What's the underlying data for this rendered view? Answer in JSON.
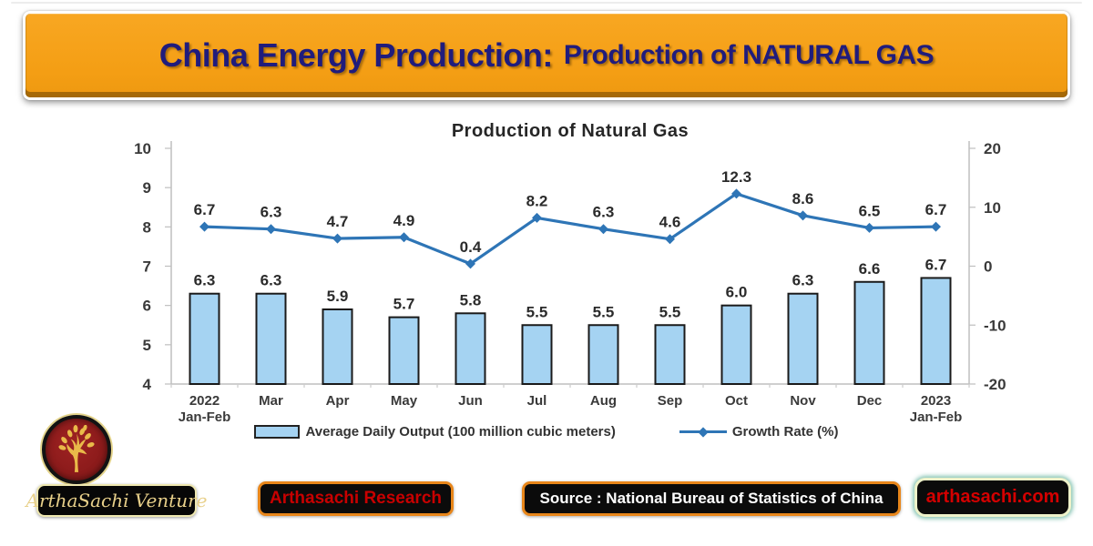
{
  "header": {
    "title_main": "China Energy Production:",
    "title_sub": "Production of NATURAL GAS",
    "bg_color": "#F5A01E",
    "text_color": "#201C7C"
  },
  "chart_data": {
    "type": "combo",
    "title": "Production of Natural Gas",
    "categories": [
      "2022\nJan-Feb",
      "Mar",
      "Apr",
      "May",
      "Jun",
      "Jul",
      "Aug",
      "Sep",
      "Oct",
      "Nov",
      "Dec",
      "2023\nJan-Feb"
    ],
    "series": [
      {
        "name": "Average Daily Output (100 million cubic meters)",
        "type": "bar",
        "axis": "left",
        "color": "#A5D3F2",
        "values": [
          6.3,
          6.3,
          5.9,
          5.7,
          5.8,
          5.5,
          5.5,
          5.5,
          6.0,
          6.3,
          6.6,
          6.7
        ]
      },
      {
        "name": "Growth Rate (%)",
        "type": "line",
        "axis": "right",
        "color": "#2E75B6",
        "values": [
          6.7,
          6.3,
          4.7,
          4.9,
          0.4,
          8.2,
          6.3,
          4.6,
          12.3,
          8.6,
          6.5,
          6.7
        ]
      }
    ],
    "left_axis": {
      "min": 4,
      "max": 10,
      "ticks": [
        4,
        5,
        6,
        7,
        8,
        9,
        10
      ]
    },
    "right_axis": {
      "min": -20,
      "max": 20,
      "ticks": [
        -20,
        -10,
        0,
        10,
        20
      ]
    },
    "grid": "off",
    "legend_position": "bottom"
  },
  "footer": {
    "logo": {
      "label": "ArthaSachi Venture",
      "icon": "tree-icon",
      "circle_color": "#8C1B1B",
      "gold_color": "#E9BA49"
    },
    "badges": [
      {
        "label": "Arthasachi Research",
        "text_color": "#C80000",
        "border_color": "#E8861A"
      },
      {
        "label": "Source : National Bureau of Statistics of China",
        "text_color": "#FFFFFF",
        "border_color": "#E8861A"
      },
      {
        "label": "arthasachi.com",
        "text_color": "#D40000",
        "border_color": "#EEF2CA"
      }
    ]
  }
}
